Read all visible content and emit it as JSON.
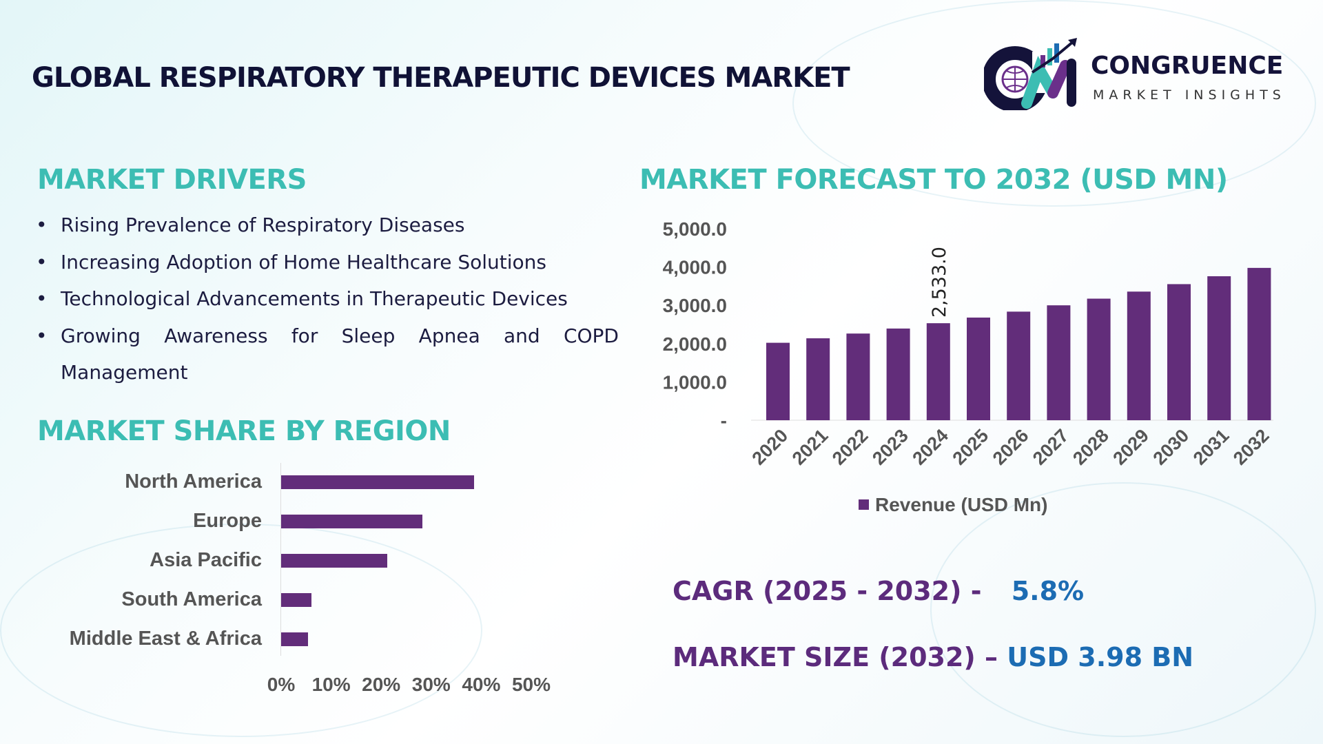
{
  "title": "GLOBAL RESPIRATORY THERAPEUTIC DEVICES MARKET",
  "logo": {
    "name": "CONGRUENCE",
    "tagline": "MARKET INSIGHTS",
    "monogram": "CM"
  },
  "drivers": {
    "heading": "MARKET DRIVERS",
    "items": [
      "Rising Prevalence of Respiratory Diseases",
      "Increasing Adoption of Home Healthcare Solutions",
      "Technological Advancements in Therapeutic Devices",
      "Growing Awareness for Sleep Apnea and COPD Management"
    ]
  },
  "kpis": {
    "cagr_label": "CAGR (2025 - 2032) -",
    "cagr_value": "5.8%",
    "size_label": "MARKET SIZE (2032) –",
    "size_value": "USD 3.98 BN"
  },
  "colors": {
    "bar": "#622d7a",
    "teal": "#3cbdb3",
    "kpi_label": "#5c2b7c",
    "kpi_value": "#1c6cb3"
  },
  "chart_data": [
    {
      "type": "bar",
      "title": "MARKET FORECAST TO 2032 (USD MN)",
      "categories": [
        "2020",
        "2021",
        "2022",
        "2023",
        "2024",
        "2025",
        "2026",
        "2027",
        "2028",
        "2029",
        "2030",
        "2031",
        "2032"
      ],
      "series": [
        {
          "name": "Revenue (USD Mn)",
          "values": [
            2022,
            2139,
            2263,
            2394,
            2533,
            2680,
            2835,
            3000,
            3174,
            3358,
            3553,
            3759,
            3977
          ]
        }
      ],
      "data_labels": [
        {
          "category": "2024",
          "text": "2,533.0"
        }
      ],
      "ylim": [
        0,
        5000
      ],
      "yticks": [
        "-",
        "1,000.0",
        "2,000.0",
        "3,000.0",
        "4,000.0",
        "5,000.0"
      ],
      "legend": "bottom",
      "grid": false
    },
    {
      "type": "bar",
      "orientation": "horizontal",
      "title": "MARKET SHARE BY REGION",
      "categories": [
        "North America",
        "Europe",
        "Asia Pacific",
        "South America",
        "Middle East & Africa"
      ],
      "values": [
        38.6,
        28.3,
        21.2,
        6.1,
        5.4
      ],
      "xlim": [
        0,
        50
      ],
      "xticks": [
        "0%",
        "10%",
        "20%",
        "30%",
        "40%",
        "50%"
      ],
      "grid": false
    }
  ]
}
